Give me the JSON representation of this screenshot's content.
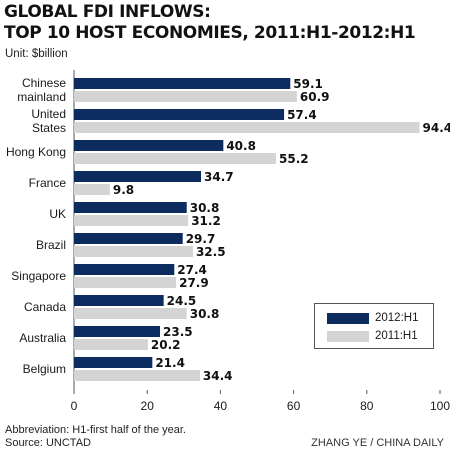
{
  "title_line1": "GLOBAL FDI INFLOWS:",
  "title_line2": "TOP 10 HOST ECONOMIES, 2011:H1-2012:H1",
  "unit": "Unit: $billion",
  "footnote": "Abbreviation: H1-first half of the year.",
  "source": "Source: UNCTAD",
  "credit": "ZHANG YE / CHINA DAILY",
  "colors": {
    "series_2012": "#0c2c60",
    "series_2011": "#d4d4d4",
    "axis": "#555555"
  },
  "chart_data": {
    "type": "bar",
    "orientation": "horizontal",
    "categories": [
      [
        "Chinese",
        "mainland"
      ],
      [
        "United",
        "States"
      ],
      [
        "Hong Kong"
      ],
      [
        "France"
      ],
      [
        "UK"
      ],
      [
        "Brazil"
      ],
      [
        "Singapore"
      ],
      [
        "Canada"
      ],
      [
        "Australia"
      ],
      [
        "Belgium"
      ]
    ],
    "series": [
      {
        "name": "2012:H1",
        "values": [
          59.1,
          57.4,
          40.8,
          34.7,
          30.8,
          29.7,
          27.4,
          24.5,
          23.5,
          21.4
        ]
      },
      {
        "name": "2011:H1",
        "values": [
          60.9,
          94.4,
          55.2,
          9.8,
          31.2,
          32.5,
          27.9,
          30.8,
          20.2,
          34.4
        ]
      }
    ],
    "xlim": [
      0,
      100
    ],
    "xticks": [
      0,
      20,
      40,
      60,
      80,
      100
    ],
    "legend_position": "bottom-right"
  }
}
